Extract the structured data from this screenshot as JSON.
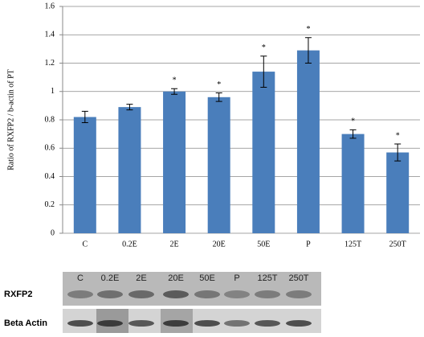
{
  "chart_data": {
    "type": "bar",
    "y_label": "Ratio of RXFP2 / b-actin of PT",
    "categories": [
      "C",
      "0.2E",
      "2E",
      "20E",
      "50E",
      "P",
      "125T",
      "250T"
    ],
    "values": [
      0.82,
      0.89,
      1.0,
      0.96,
      1.14,
      1.29,
      0.7,
      0.57
    ],
    "errors": [
      0.04,
      0.02,
      0.02,
      0.03,
      0.11,
      0.09,
      0.03,
      0.06
    ],
    "significance": [
      null,
      null,
      "*",
      "*",
      "*",
      "*",
      "*",
      "*"
    ],
    "color": "#4a7ebb",
    "ylim": [
      0,
      1.6
    ],
    "yticks": [
      0,
      0.2,
      0.4,
      0.6,
      0.8,
      1,
      1.2,
      1.4,
      1.6
    ],
    "grid": true
  },
  "blot": {
    "lanes": [
      "C",
      "0.2E",
      "2E",
      "20E",
      "50E",
      "P",
      "125T",
      "250T"
    ],
    "rows": [
      "RXFP2",
      "Beta Actin"
    ]
  }
}
